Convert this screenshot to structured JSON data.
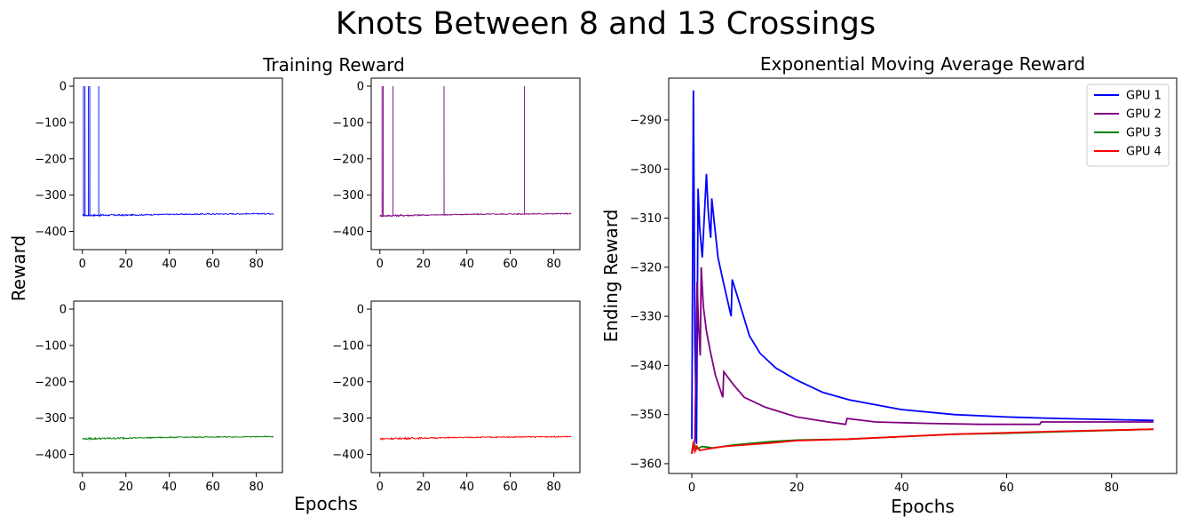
{
  "figure": {
    "title": "Knots Between 8 and 13 Crossings",
    "left_title": "Training Reward",
    "left_ylabel": "Reward",
    "left_xlabel": "Epochs"
  },
  "chart_data": [
    {
      "type": "line",
      "title": "",
      "xlabel": "",
      "ylabel": "",
      "xlim": [
        -4,
        92
      ],
      "ylim": [
        -450,
        22
      ],
      "xticks": [
        0,
        20,
        40,
        60,
        80
      ],
      "yticks": [
        0,
        -100,
        -200,
        -300,
        -400
      ],
      "series": [
        {
          "name": "",
          "color": "#0000ff",
          "baseline": [
            [
              0,
              -356
            ],
            [
              10,
              -355
            ],
            [
              20,
              -355
            ],
            [
              40,
              -353
            ],
            [
              60,
              -352
            ],
            [
              88,
              -351
            ]
          ],
          "spikes": [
            0.5,
            1.2,
            2.8,
            3.4,
            7.5
          ]
        }
      ]
    },
    {
      "type": "line",
      "title": "",
      "xlabel": "",
      "ylabel": "",
      "xlim": [
        -4,
        92
      ],
      "ylim": [
        -450,
        22
      ],
      "xticks": [
        0,
        20,
        40,
        60,
        80
      ],
      "yticks": [
        0,
        -100,
        -200,
        -300,
        -400
      ],
      "series": [
        {
          "name": "",
          "color": "#800080",
          "baseline": [
            [
              0,
              -357
            ],
            [
              10,
              -356
            ],
            [
              20,
              -355
            ],
            [
              40,
              -353
            ],
            [
              60,
              -352
            ],
            [
              88,
              -351
            ]
          ],
          "spikes": [
            1.0,
            1.5,
            6.0,
            29.5,
            66.5
          ]
        }
      ]
    },
    {
      "type": "line",
      "title": "",
      "xlabel": "",
      "ylabel": "",
      "xlim": [
        -4,
        92
      ],
      "ylim": [
        -450,
        22
      ],
      "xticks": [
        0,
        20,
        40,
        60,
        80
      ],
      "yticks": [
        0,
        -100,
        -200,
        -300,
        -400
      ],
      "series": [
        {
          "name": "",
          "color": "#008000",
          "baseline": [
            [
              0,
              -357
            ],
            [
              10,
              -356
            ],
            [
              20,
              -355
            ],
            [
              40,
              -353
            ],
            [
              60,
              -352
            ],
            [
              88,
              -351
            ]
          ],
          "spikes": []
        }
      ]
    },
    {
      "type": "line",
      "title": "",
      "xlabel": "",
      "ylabel": "",
      "xlim": [
        -4,
        92
      ],
      "ylim": [
        -450,
        22
      ],
      "xticks": [
        0,
        20,
        40,
        60,
        80
      ],
      "yticks": [
        0,
        -100,
        -200,
        -300,
        -400
      ],
      "series": [
        {
          "name": "",
          "color": "#ff0000",
          "baseline": [
            [
              0,
              -357
            ],
            [
              10,
              -356
            ],
            [
              20,
              -355
            ],
            [
              40,
              -353
            ],
            [
              60,
              -352
            ],
            [
              88,
              -351
            ]
          ],
          "spikes": []
        }
      ]
    },
    {
      "type": "line",
      "title": "Exponential Moving Average Reward",
      "xlabel": "Epochs",
      "ylabel": "Ending Reward",
      "xlim": [
        -4.4,
        92.4
      ],
      "ylim": [
        -362,
        -281.5
      ],
      "xticks": [
        0,
        20,
        40,
        60,
        80
      ],
      "yticks": [
        -290,
        -300,
        -310,
        -320,
        -330,
        -340,
        -350,
        -360
      ],
      "legend": "top-right",
      "series": [
        {
          "name": "GPU 1",
          "color": "#0000ff",
          "points": [
            [
              0,
              -355
            ],
            [
              0.3,
              -284
            ],
            [
              0.6,
              -335
            ],
            [
              0.9,
              -356
            ],
            [
              1.2,
              -304
            ],
            [
              1.5,
              -312
            ],
            [
              2.0,
              -318
            ],
            [
              2.8,
              -301
            ],
            [
              3.1,
              -308
            ],
            [
              3.4,
              -312
            ],
            [
              3.6,
              -314
            ],
            [
              3.8,
              -306
            ],
            [
              4.2,
              -310
            ],
            [
              5,
              -318
            ],
            [
              6,
              -323
            ],
            [
              7.5,
              -330
            ],
            [
              7.7,
              -322.5
            ],
            [
              9,
              -327
            ],
            [
              11,
              -334
            ],
            [
              13,
              -337.5
            ],
            [
              16,
              -340.5
            ],
            [
              20,
              -343
            ],
            [
              25,
              -345.5
            ],
            [
              30,
              -347
            ],
            [
              40,
              -349
            ],
            [
              50,
              -350
            ],
            [
              60,
              -350.5
            ],
            [
              70,
              -350.8
            ],
            [
              88,
              -351.2
            ]
          ]
        },
        {
          "name": "GPU 2",
          "color": "#800080",
          "points": [
            [
              0,
              -358
            ],
            [
              0.6,
              -355
            ],
            [
              1.0,
              -323
            ],
            [
              1.3,
              -332
            ],
            [
              1.6,
              -338
            ],
            [
              1.8,
              -320
            ],
            [
              2.2,
              -328
            ],
            [
              2.8,
              -333
            ],
            [
              3.5,
              -337
            ],
            [
              4.5,
              -342
            ],
            [
              5.9,
              -346.5
            ],
            [
              6.1,
              -341.3
            ],
            [
              8,
              -344
            ],
            [
              10,
              -346.5
            ],
            [
              14,
              -348.5
            ],
            [
              20,
              -350.5
            ],
            [
              26,
              -351.5
            ],
            [
              29.3,
              -352
            ],
            [
              29.6,
              -350.8
            ],
            [
              35,
              -351.5
            ],
            [
              45,
              -351.8
            ],
            [
              55,
              -352
            ],
            [
              66.3,
              -352
            ],
            [
              66.6,
              -351.5
            ],
            [
              75,
              -351.5
            ],
            [
              88,
              -351.5
            ]
          ]
        },
        {
          "name": "GPU 3",
          "color": "#008000",
          "points": [
            [
              0,
              -357.5
            ],
            [
              0.4,
              -356
            ],
            [
              1,
              -357
            ],
            [
              2,
              -356.5
            ],
            [
              4,
              -356.8
            ],
            [
              8,
              -356.2
            ],
            [
              15,
              -355.5
            ],
            [
              20,
              -355.2
            ],
            [
              30,
              -355
            ],
            [
              40,
              -354.5
            ],
            [
              50,
              -354
            ],
            [
              60,
              -353.8
            ],
            [
              70,
              -353.5
            ],
            [
              88,
              -353
            ]
          ]
        },
        {
          "name": "GPU 4",
          "color": "#ff0000",
          "points": [
            [
              0,
              -358
            ],
            [
              0.3,
              -355.5
            ],
            [
              0.6,
              -357.5
            ],
            [
              1.0,
              -356.5
            ],
            [
              1.5,
              -357.3
            ],
            [
              3,
              -357
            ],
            [
              6,
              -356.5
            ],
            [
              10,
              -356.2
            ],
            [
              15,
              -355.8
            ],
            [
              20,
              -355.3
            ],
            [
              30,
              -355
            ],
            [
              40,
              -354.5
            ],
            [
              50,
              -354
            ],
            [
              60,
              -353.7
            ],
            [
              70,
              -353.4
            ],
            [
              88,
              -353
            ]
          ]
        }
      ]
    }
  ]
}
